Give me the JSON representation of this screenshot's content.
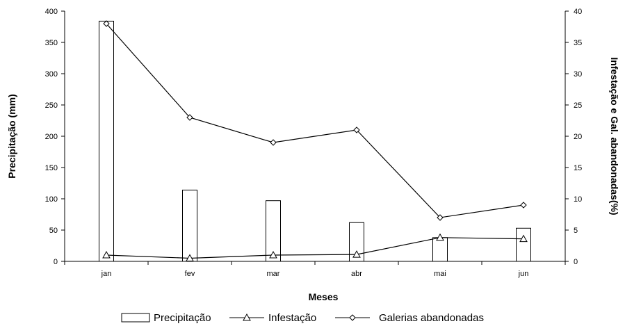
{
  "chart_data": {
    "type": "bar",
    "categories": [
      "jan",
      "fev",
      "mar",
      "abr",
      "mai",
      "jun"
    ],
    "xlabel": "Meses",
    "ylabel": "Precipitação (mm)",
    "y2label": "Infestação e Gal. abandonadas(%)",
    "ylim": [
      0,
      400
    ],
    "y2lim": [
      0,
      40
    ],
    "yticks": [
      0,
      50,
      100,
      150,
      200,
      250,
      300,
      350,
      400
    ],
    "y2ticks": [
      0,
      5,
      10,
      15,
      20,
      25,
      30,
      35,
      40
    ],
    "grid": false,
    "legend_position": "bottom",
    "series": [
      {
        "name": "Precipitação",
        "kind": "bar",
        "axis": "left",
        "values": [
          384,
          114,
          97,
          62,
          38,
          53
        ]
      },
      {
        "name": "Infestação",
        "kind": "line",
        "marker": "triangle",
        "axis": "right",
        "values": [
          1.0,
          0.5,
          1.0,
          1.1,
          3.8,
          3.6
        ]
      },
      {
        "name": "Galerias abandonadas",
        "kind": "line",
        "marker": "diamond",
        "axis": "right",
        "values": [
          38,
          23,
          19,
          21,
          7,
          9
        ]
      }
    ],
    "colors": {
      "stroke": "#000000",
      "fill": "#ffffff"
    }
  }
}
